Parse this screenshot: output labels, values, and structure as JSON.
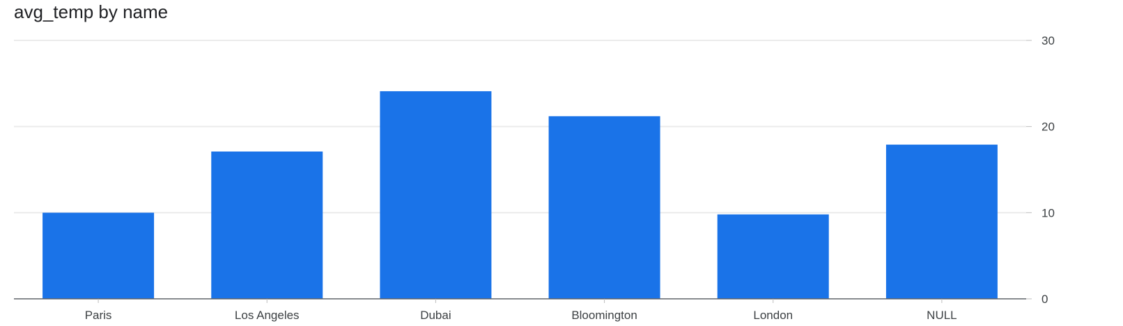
{
  "chart_data": {
    "type": "bar",
    "title": "avg_temp by name",
    "xlabel": "",
    "ylabel": "",
    "categories": [
      "Paris",
      "Los Angeles",
      "Dubai",
      "Bloomington",
      "London",
      "NULL"
    ],
    "values": [
      10,
      17.1,
      24.1,
      21.2,
      9.8,
      17.9
    ],
    "ylim": [
      0,
      30
    ],
    "yticks": [
      0,
      10,
      20,
      30
    ],
    "grid": true,
    "y_axis_position": "right",
    "legend": "none",
    "bar_color": "#1a73e8",
    "grid_color": "#ebebeb",
    "axis_color": "#5f6368"
  }
}
